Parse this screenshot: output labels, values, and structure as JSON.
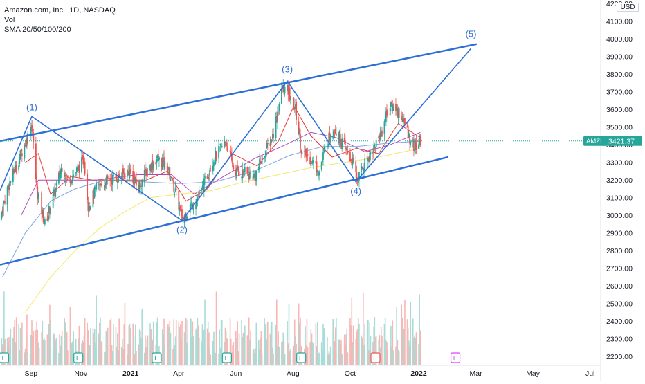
{
  "header": {
    "symbol_line": "Amazon.com, Inc., 1D, NASDAQ",
    "volume_label": "Vol",
    "sma_label": "SMA 20/50/100/200",
    "currency": "USD"
  },
  "price_label": {
    "ticker": "AMZN",
    "value": "3421.37",
    "value_num": 3421.37
  },
  "colors": {
    "up": "#26a69a",
    "down": "#ef5350",
    "vol_up": "#a8ddd7",
    "vol_down": "#f7b7b5",
    "wave": "#2c6fd6",
    "sma20": "#e53935",
    "sma50": "#ab47bc",
    "sma100": "#7ea6e0",
    "sma200": "#f3e76a",
    "earnings": "#26a69a",
    "earnings_future": "#e040fb",
    "earnings_recent": "#ef5350"
  },
  "chart_data": {
    "type": "candlestick",
    "y_axis": {
      "min": 2150,
      "max": 4220,
      "ticks": [
        2200,
        2300,
        2400,
        2500,
        2600,
        2700,
        2800,
        2900,
        3000,
        3100,
        3200,
        3300,
        3400,
        3500,
        3600,
        3700,
        3800,
        3900,
        4000,
        4100,
        4200
      ],
      "tick_labels": [
        "2200.00",
        "2300.00",
        "2400.00",
        "2500.00",
        "2600.00",
        "2700.00",
        "2800.00",
        "2900.00",
        "3000.00",
        "3100.00",
        "3200.00",
        "3300.00",
        "3400.00",
        "3500.00",
        "3600.00",
        "3700.00",
        "3800.00",
        "3900.00",
        "4000.00",
        "4100.00",
        "4200.00"
      ]
    },
    "x_axis": {
      "start": "2020-07-25",
      "end": "2022-07-31",
      "ticks": [
        {
          "date": "2020-09-01",
          "label": "Sep"
        },
        {
          "date": "2020-11-01",
          "label": "Nov"
        },
        {
          "date": "2021-01-01",
          "label": "2021"
        },
        {
          "date": "2021-03-01",
          "label": "Apr"
        },
        {
          "date": "2021-05-10",
          "label": "Jun"
        },
        {
          "date": "2021-07-19",
          "label": "Aug"
        },
        {
          "date": "2021-09-27",
          "label": "Oct"
        },
        {
          "date": "2021-12-20",
          "label": "2022"
        },
        {
          "date": "2022-02-28",
          "label": "Mar"
        },
        {
          "date": "2022-05-09",
          "label": "May"
        },
        {
          "date": "2022-07-18",
          "label": "Jul"
        }
      ]
    },
    "price_path": [
      {
        "date": "2020-07-25",
        "price": 2980
      },
      {
        "date": "2020-08-03",
        "price": 3150
      },
      {
        "date": "2020-08-14",
        "price": 3280
      },
      {
        "date": "2020-08-28",
        "price": 3450
      },
      {
        "date": "2020-09-02",
        "price": 3520
      },
      {
        "date": "2020-09-08",
        "price": 3150
      },
      {
        "date": "2020-09-18",
        "price": 2950
      },
      {
        "date": "2020-09-28",
        "price": 3100
      },
      {
        "date": "2020-10-09",
        "price": 3280
      },
      {
        "date": "2020-10-16",
        "price": 3200
      },
      {
        "date": "2020-10-27",
        "price": 3250
      },
      {
        "date": "2020-11-05",
        "price": 3320
      },
      {
        "date": "2020-11-10",
        "price": 3050
      },
      {
        "date": "2020-11-20",
        "price": 3150
      },
      {
        "date": "2020-12-05",
        "price": 3200
      },
      {
        "date": "2020-12-18",
        "price": 3220
      },
      {
        "date": "2020-12-31",
        "price": 3250
      },
      {
        "date": "2021-01-10",
        "price": 3150
      },
      {
        "date": "2021-01-20",
        "price": 3250
      },
      {
        "date": "2021-02-02",
        "price": 3320
      },
      {
        "date": "2021-02-14",
        "price": 3280
      },
      {
        "date": "2021-02-24",
        "price": 3150
      },
      {
        "date": "2021-03-05",
        "price": 2980
      },
      {
        "date": "2021-03-15",
        "price": 3050
      },
      {
        "date": "2021-03-28",
        "price": 3120
      },
      {
        "date": "2021-04-10",
        "price": 3300
      },
      {
        "date": "2021-04-28",
        "price": 3420
      },
      {
        "date": "2021-05-08",
        "price": 3250
      },
      {
        "date": "2021-05-20",
        "price": 3240
      },
      {
        "date": "2021-06-02",
        "price": 3220
      },
      {
        "date": "2021-06-14",
        "price": 3350
      },
      {
        "date": "2021-06-24",
        "price": 3450
      },
      {
        "date": "2021-07-06",
        "price": 3720
      },
      {
        "date": "2021-07-13",
        "price": 3700
      },
      {
        "date": "2021-07-22",
        "price": 3600
      },
      {
        "date": "2021-07-30",
        "price": 3350
      },
      {
        "date": "2021-08-10",
        "price": 3320
      },
      {
        "date": "2021-08-20",
        "price": 3250
      },
      {
        "date": "2021-08-30",
        "price": 3420
      },
      {
        "date": "2021-09-08",
        "price": 3500
      },
      {
        "date": "2021-09-18",
        "price": 3400
      },
      {
        "date": "2021-09-30",
        "price": 3300
      },
      {
        "date": "2021-10-06",
        "price": 3200
      },
      {
        "date": "2021-10-15",
        "price": 3300
      },
      {
        "date": "2021-10-28",
        "price": 3400
      },
      {
        "date": "2021-11-05",
        "price": 3480
      },
      {
        "date": "2021-11-12",
        "price": 3600
      },
      {
        "date": "2021-11-20",
        "price": 3620
      },
      {
        "date": "2021-11-30",
        "price": 3550
      },
      {
        "date": "2021-12-08",
        "price": 3450
      },
      {
        "date": "2021-12-15",
        "price": 3380
      },
      {
        "date": "2021-12-22",
        "price": 3421
      }
    ],
    "sma_series": [
      {
        "key": "sma20",
        "points": [
          {
            "date": "2020-08-25",
            "price": 3300
          },
          {
            "date": "2020-09-10",
            "price": 3350
          },
          {
            "date": "2020-09-25",
            "price": 3120
          },
          {
            "date": "2020-10-20",
            "price": 3220
          },
          {
            "date": "2020-11-15",
            "price": 3200
          },
          {
            "date": "2020-12-20",
            "price": 3200
          },
          {
            "date": "2021-01-20",
            "price": 3200
          },
          {
            "date": "2021-02-15",
            "price": 3250
          },
          {
            "date": "2021-03-10",
            "price": 3080
          },
          {
            "date": "2021-04-05",
            "price": 3150
          },
          {
            "date": "2021-05-05",
            "price": 3350
          },
          {
            "date": "2021-06-05",
            "price": 3280
          },
          {
            "date": "2021-07-01",
            "price": 3420
          },
          {
            "date": "2021-07-20",
            "price": 3620
          },
          {
            "date": "2021-08-10",
            "price": 3450
          },
          {
            "date": "2021-09-05",
            "price": 3330
          },
          {
            "date": "2021-10-05",
            "price": 3380
          },
          {
            "date": "2021-11-01",
            "price": 3350
          },
          {
            "date": "2021-11-25",
            "price": 3520
          },
          {
            "date": "2021-12-22",
            "price": 3440
          }
        ]
      },
      {
        "key": "sma50",
        "points": [
          {
            "date": "2020-08-20",
            "price": 3000
          },
          {
            "date": "2020-09-10",
            "price": 3200
          },
          {
            "date": "2020-10-15",
            "price": 3200
          },
          {
            "date": "2020-11-20",
            "price": 3200
          },
          {
            "date": "2021-01-10",
            "price": 3230
          },
          {
            "date": "2021-02-20",
            "price": 3230
          },
          {
            "date": "2021-03-20",
            "price": 3120
          },
          {
            "date": "2021-04-25",
            "price": 3220
          },
          {
            "date": "2021-06-01",
            "price": 3320
          },
          {
            "date": "2021-07-10",
            "price": 3400
          },
          {
            "date": "2021-08-10",
            "price": 3470
          },
          {
            "date": "2021-09-10",
            "price": 3440
          },
          {
            "date": "2021-10-15",
            "price": 3360
          },
          {
            "date": "2021-11-15",
            "price": 3400
          },
          {
            "date": "2021-12-22",
            "price": 3470
          }
        ]
      },
      {
        "key": "sma100",
        "points": [
          {
            "date": "2020-07-28",
            "price": 2650
          },
          {
            "date": "2020-08-25",
            "price": 2900
          },
          {
            "date": "2020-09-25",
            "price": 3080
          },
          {
            "date": "2020-10-25",
            "price": 3150
          },
          {
            "date": "2020-12-01",
            "price": 3200
          },
          {
            "date": "2021-01-15",
            "price": 3190
          },
          {
            "date": "2021-03-01",
            "price": 3180
          },
          {
            "date": "2021-04-15",
            "price": 3190
          },
          {
            "date": "2021-06-01",
            "price": 3250
          },
          {
            "date": "2021-07-15",
            "price": 3340
          },
          {
            "date": "2021-08-25",
            "price": 3390
          },
          {
            "date": "2021-10-05",
            "price": 3390
          },
          {
            "date": "2021-11-15",
            "price": 3410
          },
          {
            "date": "2021-12-22",
            "price": 3420
          }
        ]
      },
      {
        "key": "sma200",
        "points": [
          {
            "date": "2020-08-25",
            "price": 2450
          },
          {
            "date": "2020-09-25",
            "price": 2650
          },
          {
            "date": "2020-10-25",
            "price": 2800
          },
          {
            "date": "2020-11-25",
            "price": 2930
          },
          {
            "date": "2020-12-25",
            "price": 3020
          },
          {
            "date": "2021-01-25",
            "price": 3100
          },
          {
            "date": "2021-03-01",
            "price": 3120
          },
          {
            "date": "2021-04-10",
            "price": 3140
          },
          {
            "date": "2021-05-20",
            "price": 3190
          },
          {
            "date": "2021-07-01",
            "price": 3230
          },
          {
            "date": "2021-08-10",
            "price": 3270
          },
          {
            "date": "2021-09-20",
            "price": 3300
          },
          {
            "date": "2021-11-01",
            "price": 3330
          },
          {
            "date": "2021-12-22",
            "price": 3380
          }
        ]
      }
    ],
    "channel_lines": [
      {
        "from": {
          "date": "2020-07-25",
          "price": 3420
        },
        "to": {
          "date": "2022-03-01",
          "price": 3970
        }
      },
      {
        "from": {
          "date": "2020-07-25",
          "price": 2720
        },
        "to": {
          "date": "2022-01-25",
          "price": 3330
        }
      }
    ],
    "wave_points": [
      {
        "date": "2020-07-25",
        "price": 3140
      },
      {
        "date": "2020-09-02",
        "price": 3560
      },
      {
        "date": "2021-03-05",
        "price": 2970
      },
      {
        "date": "2021-07-12",
        "price": 3760
      },
      {
        "date": "2021-10-04",
        "price": 3190
      },
      {
        "date": "2022-02-22",
        "price": 3945
      }
    ],
    "wave_labels": [
      {
        "text": "(1)",
        "date": "2020-09-02",
        "price": 3595
      },
      {
        "text": "(2)",
        "date": "2021-03-05",
        "price": 2900
      },
      {
        "text": "(3)",
        "date": "2021-07-12",
        "price": 3810
      },
      {
        "text": "(4)",
        "date": "2021-10-04",
        "price": 3120
      },
      {
        "text": "(5)",
        "date": "2022-02-22",
        "price": 4010
      }
    ],
    "earnings_markers": [
      {
        "date": "2020-07-30",
        "label": "E",
        "kind": "past"
      },
      {
        "date": "2020-10-29",
        "label": "E",
        "kind": "past"
      },
      {
        "date": "2021-02-02",
        "label": "E",
        "kind": "past"
      },
      {
        "date": "2021-04-29",
        "label": "E",
        "kind": "past"
      },
      {
        "date": "2021-07-29",
        "label": "E",
        "kind": "past"
      },
      {
        "date": "2021-10-28",
        "label": "E",
        "kind": "recent"
      },
      {
        "date": "2022-02-03",
        "label": "E",
        "kind": "future"
      }
    ],
    "last_price": 3421.37
  }
}
